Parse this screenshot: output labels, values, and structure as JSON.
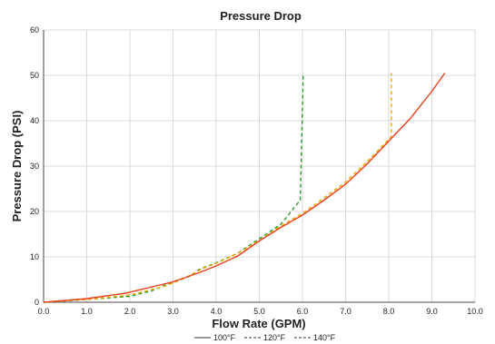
{
  "chart_data": {
    "type": "line",
    "title": "Pressure Drop",
    "xlabel": "Flow Rate (GPM)",
    "ylabel": "Pressure Drop (PSI)",
    "xlim": [
      0,
      10
    ],
    "ylim": [
      0,
      60
    ],
    "x_ticks": [
      "0.0",
      "1.0",
      "2.0",
      "3.0",
      "4.0",
      "5.0",
      "6.0",
      "7.0",
      "8.0",
      "9.0",
      "10.0"
    ],
    "y_ticks": [
      "0",
      "10",
      "20",
      "30",
      "40",
      "50",
      "60"
    ],
    "grid": true,
    "legend_position": "bottom",
    "series": [
      {
        "name": "100°F",
        "color": "#e8401c",
        "style": "solid",
        "points": [
          [
            0,
            0
          ],
          [
            1,
            0.8
          ],
          [
            1.9,
            2
          ],
          [
            3,
            4.5
          ],
          [
            3.6,
            6.5
          ],
          [
            4,
            8
          ],
          [
            4.5,
            10.2
          ],
          [
            5,
            13.5
          ],
          [
            5.5,
            16.5
          ],
          [
            6,
            19.2
          ],
          [
            6.5,
            22.5
          ],
          [
            7,
            26
          ],
          [
            7.5,
            30.5
          ],
          [
            8,
            35.5
          ],
          [
            8.5,
            40.5
          ],
          [
            9,
            46.5
          ],
          [
            9.3,
            50.5
          ]
        ]
      },
      {
        "name": "120°F",
        "color": "#f0a800",
        "style": "dashed",
        "points": [
          [
            0,
            0
          ],
          [
            1,
            0.6
          ],
          [
            2,
            1.6
          ],
          [
            2.8,
            3.5
          ],
          [
            3.2,
            5
          ],
          [
            3.7,
            7.5
          ],
          [
            4,
            8.6
          ],
          [
            4.5,
            10.8
          ],
          [
            5,
            13.6
          ],
          [
            5.5,
            16.8
          ],
          [
            6,
            19.6
          ],
          [
            6.5,
            23
          ],
          [
            7,
            26.5
          ],
          [
            7.5,
            31
          ],
          [
            8.06,
            36.5
          ],
          [
            8.06,
            50.5
          ]
        ]
      },
      {
        "name": "140°F",
        "color": "#2a9a2a",
        "style": "dashed",
        "points": [
          [
            0,
            0
          ],
          [
            1,
            0.6
          ],
          [
            2,
            1.3
          ],
          [
            2.5,
            2.5
          ],
          [
            3,
            4.5
          ],
          [
            3.4,
            5.8
          ],
          [
            3.6,
            7.2
          ],
          [
            4,
            8.7
          ],
          [
            4.5,
            10.8
          ],
          [
            5,
            14
          ],
          [
            5.5,
            17.2
          ],
          [
            5.95,
            22.5
          ],
          [
            6.02,
            50.5
          ]
        ]
      }
    ]
  }
}
